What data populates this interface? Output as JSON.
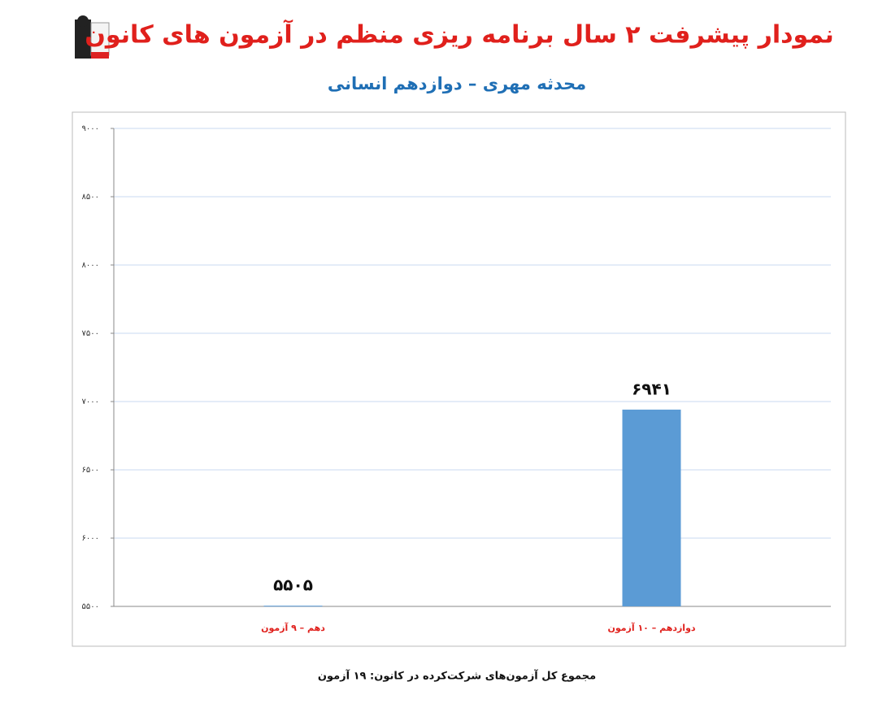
{
  "chart_data": {
    "type": "bar",
    "title": "نمودار پیشرفت ۲ سال برنامه ریزی منظم در آزمون های کانون",
    "subtitle": "محدثه مهری – دوازدهم انسانی",
    "footnote": "مجموع کل آزمون‌های شرکت‌کرده در کانون: ۱۹ آزمون",
    "categories": [
      "دهم – ۹ آزمون",
      "دوازدهم – ۱۰ آزمون"
    ],
    "values": [
      5505,
      6941
    ],
    "value_labels": [
      "۵۵۰۵",
      "۶۹۴۱"
    ],
    "color": "#5b9bd5",
    "ylim": [
      5500,
      9000
    ],
    "yticks": [
      {
        "value": 5500,
        "label": "۵۵۰۰"
      },
      {
        "value": 6000,
        "label": "۶۰۰۰"
      },
      {
        "value": 6500,
        "label": "۶۵۰۰"
      },
      {
        "value": 7000,
        "label": "۷۰۰۰"
      },
      {
        "value": 7500,
        "label": "۷۵۰۰"
      },
      {
        "value": 8000,
        "label": "۸۰۰۰"
      },
      {
        "value": 8500,
        "label": "۸۵۰۰"
      },
      {
        "value": 9000,
        "label": "۹۰۰۰"
      }
    ],
    "grid": true
  }
}
